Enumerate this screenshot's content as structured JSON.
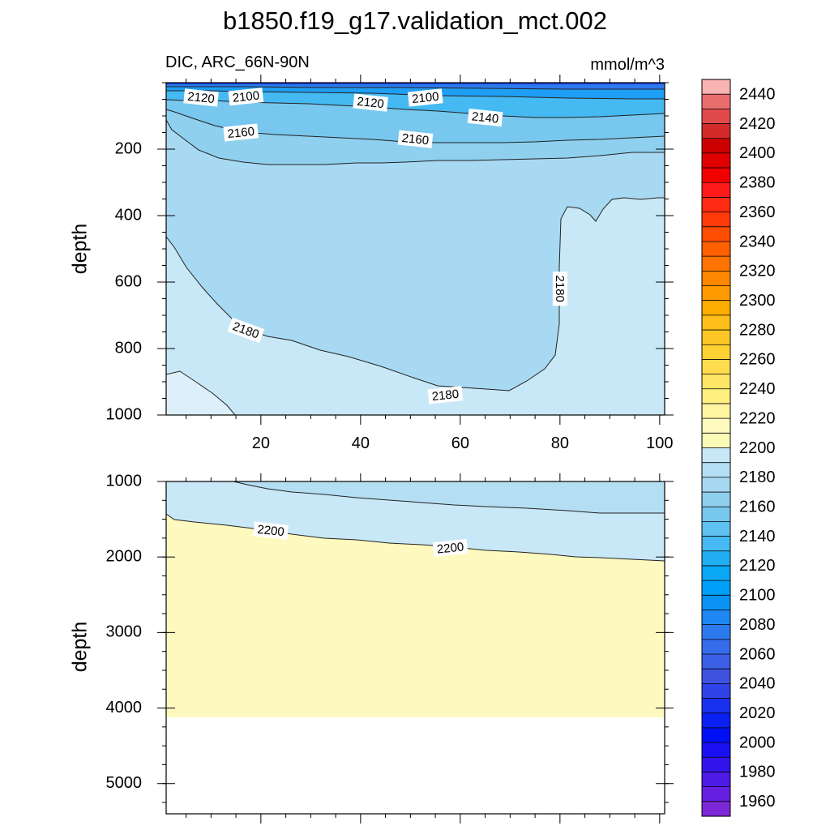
{
  "title": "b1850.f19_g17.validation_mct.002",
  "chart_data": {
    "type": "contour",
    "variable_label": "DIC, ARC_66N-90N",
    "units": "mmol/m^3",
    "x_range": [
      1,
      101
    ],
    "x_ticks": [
      20,
      40,
      60,
      80,
      100
    ],
    "panels": [
      {
        "name": "upper",
        "ylabel": "depth",
        "ylim": [
          0,
          1000
        ],
        "y_ticks": [
          200,
          400,
          600,
          800,
          1000
        ],
        "contour_labels": [
          {
            "text": "2120",
            "x": 8,
            "depth": 45
          },
          {
            "text": "2100",
            "x": 17,
            "depth": 42
          },
          {
            "text": "2120",
            "x": 42,
            "depth": 60
          },
          {
            "text": "2100",
            "x": 53,
            "depth": 45
          },
          {
            "text": "2140",
            "x": 65,
            "depth": 105
          },
          {
            "text": "2160",
            "x": 16,
            "depth": 150
          },
          {
            "text": "2160",
            "x": 51,
            "depth": 170
          },
          {
            "text": "2180",
            "x": 80,
            "depth": 620
          },
          {
            "text": "2180",
            "x": 17,
            "depth": 745
          },
          {
            "text": "2180",
            "x": 57,
            "depth": 940
          }
        ]
      },
      {
        "name": "lower",
        "ylabel": "depth",
        "ylim": [
          1000,
          5400
        ],
        "y_ticks": [
          1000,
          2000,
          3000,
          4000,
          5000
        ],
        "bottom_depth": 4100,
        "contour_labels": [
          {
            "text": "2200",
            "x": 22,
            "depth": 1650
          },
          {
            "text": "2200",
            "x": 58,
            "depth": 1880
          }
        ]
      }
    ],
    "colorbar": {
      "labels": [
        "2440",
        "2420",
        "2400",
        "2380",
        "2360",
        "2340",
        "2320",
        "2300",
        "2280",
        "2260",
        "2240",
        "2220",
        "2200",
        "2180",
        "2160",
        "2140",
        "2120",
        "2100",
        "2080",
        "2060",
        "2040",
        "2020",
        "2000",
        "1980",
        "1960"
      ],
      "colors": [
        "#f9b3b3",
        "#e86e6e",
        "#e04a4a",
        "#d32a2a",
        "#cc0000",
        "#e00000",
        "#f20000",
        "#ff1a1a",
        "#ff2a12",
        "#ff3a0a",
        "#ff4d00",
        "#ff6000",
        "#ff7300",
        "#ff8800",
        "#ff9a00",
        "#ffad00",
        "#ffbe1a",
        "#ffc726",
        "#ffd233",
        "#ffdc4d",
        "#ffe666",
        "#fff080",
        "#fff4a0",
        "#fefabf",
        "#fbfbb8",
        "#c9e8f7",
        "#b4dff3",
        "#a8d9f2",
        "#8fd0ef",
        "#77c7ee",
        "#5ec1f0",
        "#45b9f2",
        "#22aef3",
        "#0aa7f5",
        "#009ff7",
        "#0a93f5",
        "#1e87f2",
        "#2c7aee",
        "#356cea",
        "#3b5fe5",
        "#3e52df",
        "#2f43e8",
        "#1830ee",
        "#0a1ff2",
        "#0010f5",
        "#1a10f2",
        "#3414ec",
        "#4e1ae6",
        "#661fe0",
        "#7d28d8"
      ]
    }
  }
}
